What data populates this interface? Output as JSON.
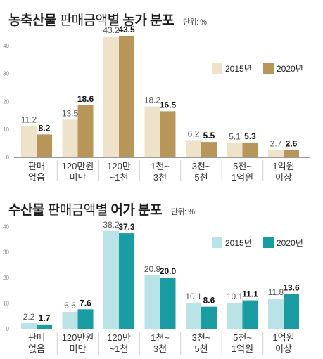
{
  "chart_data": [
    {
      "type": "bar",
      "title_bold_1": "농축산물",
      "title_normal": "판매금액별",
      "title_bold_2": "농가 분포",
      "unit": "단위: %",
      "categories": [
        [
          "판매",
          "없음"
        ],
        [
          "120만원",
          "미만"
        ],
        [
          "120만",
          "~1천"
        ],
        [
          "1천~",
          "3천"
        ],
        [
          "3천~",
          "5천"
        ],
        [
          "5천~",
          "1억원"
        ],
        [
          "1억원",
          "이상"
        ]
      ],
      "series": [
        {
          "name": "2015년",
          "values": [
            11.2,
            13.5,
            43.2,
            18.2,
            6.2,
            5.1,
            2.7
          ],
          "color": "#eee2cb"
        },
        {
          "name": "2020년",
          "values": [
            8.2,
            18.6,
            43.5,
            16.5,
            5.5,
            5.3,
            2.6
          ],
          "color": "#b89558"
        }
      ],
      "value_labels": [
        [
          "11.2",
          "13.5",
          "43.2",
          "18.2",
          "6.2",
          "5.1",
          "2.7"
        ],
        [
          "8.2",
          "18.6",
          "43.5",
          "16.5",
          "5.5",
          "5.3",
          "2.6"
        ]
      ],
      "y_ticks": [
        "0",
        "10",
        "20",
        "30",
        "40"
      ],
      "ylim": [
        0,
        45
      ],
      "grid": false,
      "legend": "top-right"
    },
    {
      "type": "bar",
      "title_bold_1": "수산물",
      "title_normal": "판매금액별",
      "title_bold_2": "어가 분포",
      "unit": "단위: %",
      "categories": [
        [
          "판매",
          "없음"
        ],
        [
          "120만원",
          "미만"
        ],
        [
          "120만",
          "~1천"
        ],
        [
          "1천~",
          "3천"
        ],
        [
          "3천~",
          "5천"
        ],
        [
          "5천~",
          "1억원"
        ],
        [
          "1억원",
          "이상"
        ]
      ],
      "series": [
        {
          "name": "2015년",
          "values": [
            2.2,
            6.6,
            38.2,
            20.9,
            10.1,
            10.1,
            11.8
          ],
          "color": "#b9e3e6"
        },
        {
          "name": "2020년",
          "values": [
            1.7,
            7.6,
            37.3,
            20.0,
            8.6,
            11.1,
            13.6
          ],
          "color": "#199da2"
        }
      ],
      "value_labels": [
        [
          "2.2",
          "6.6",
          "38.2",
          "20.9",
          "10.1",
          "10.1",
          "11.8"
        ],
        [
          "1.7",
          "7.6",
          "37.3",
          "20.0",
          "8.6",
          "11.1",
          "13.6"
        ]
      ],
      "y_ticks": [
        "0",
        "10",
        "20",
        "30",
        "40"
      ],
      "ylim": [
        0,
        42
      ],
      "grid": false,
      "legend": "top-right"
    }
  ]
}
